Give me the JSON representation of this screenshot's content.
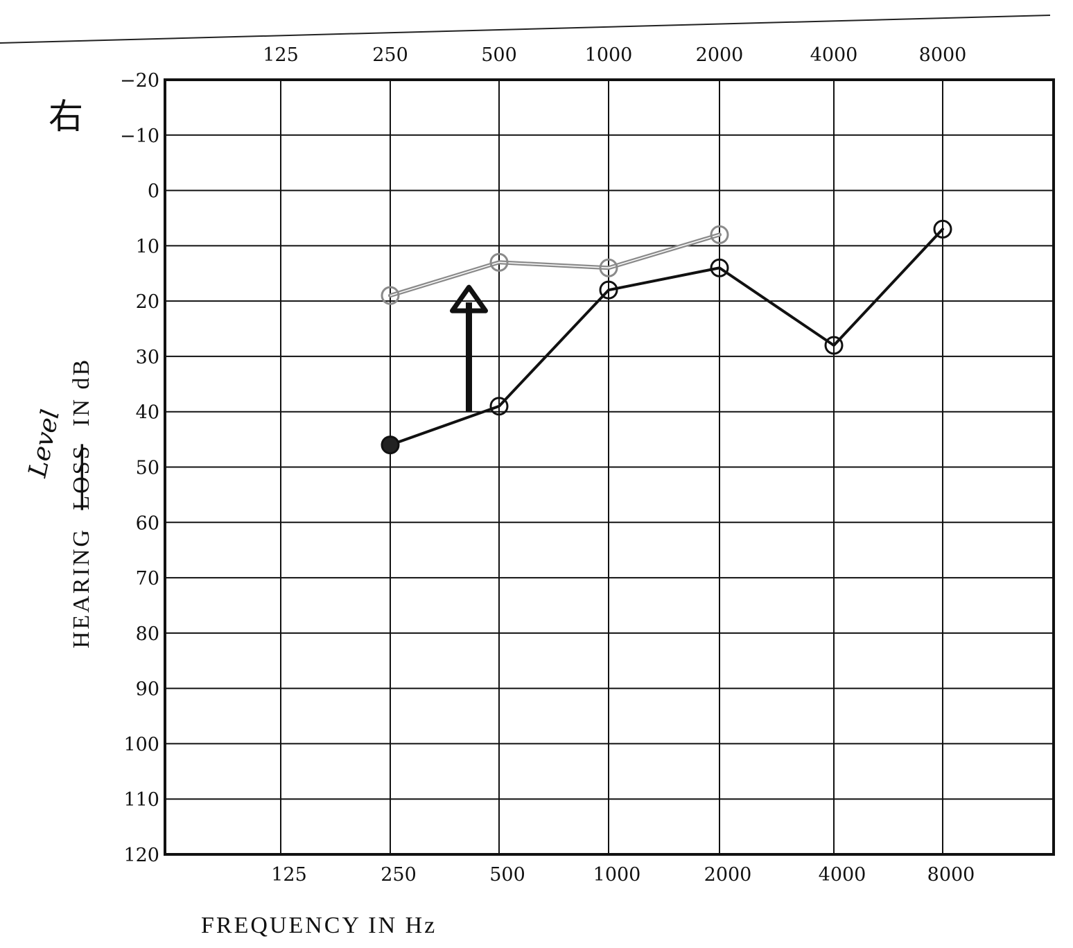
{
  "chart_data": {
    "type": "line",
    "x_tick_labels": [
      "125",
      "250",
      "500",
      "1000",
      "2000",
      "4000",
      "8000"
    ],
    "y_tick_labels": [
      "-20",
      "-10",
      "0",
      "10",
      "20",
      "30",
      "40",
      "50",
      "60",
      "70",
      "80",
      "90",
      "100",
      "110",
      "120"
    ],
    "xlabel": "FREQUENCY IN Hz",
    "ylabel_parts": {
      "before": "HEARING",
      "struck": "LOSS",
      "after": "IN dB",
      "handwritten_replacement": "Level"
    },
    "corner_mark": "右",
    "x_scale": "log2",
    "y_inverted": true,
    "ylim": [
      -20,
      120
    ],
    "grid": true,
    "series": [
      {
        "color": "#8a8a8a",
        "x": [
          250,
          500,
          1000,
          2000
        ],
        "y": [
          19,
          13,
          14,
          8
        ]
      },
      {
        "color": "#111111",
        "x": [
          250,
          500,
          1000,
          2000,
          4000,
          8000
        ],
        "y": [
          46,
          39,
          18,
          14,
          28,
          7
        ]
      }
    ],
    "annotation": {
      "type": "arrow-up",
      "x_between": [
        250,
        500
      ],
      "from_y": 40,
      "to_y": 18
    }
  }
}
